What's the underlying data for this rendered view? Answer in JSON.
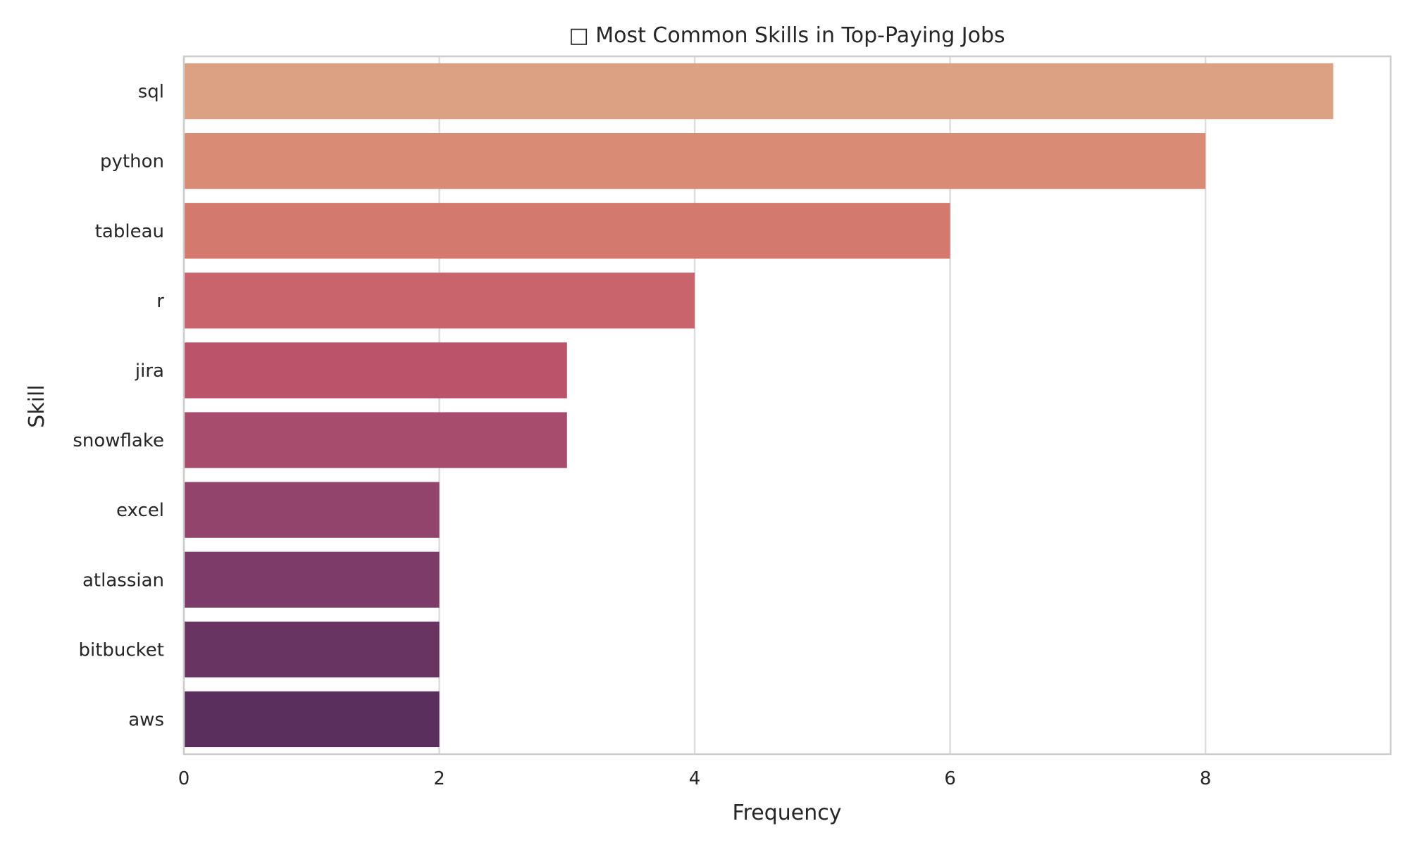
{
  "chart_data": {
    "type": "bar",
    "orientation": "horizontal",
    "title": "□ Most Common Skills in Top-Paying Jobs",
    "xlabel": "Frequency",
    "ylabel": "Skill",
    "categories": [
      "sql",
      "python",
      "tableau",
      "r",
      "jira",
      "snowflake",
      "excel",
      "atlassian",
      "bitbucket",
      "aws"
    ],
    "values": [
      9,
      8,
      6,
      4,
      3,
      3,
      2,
      2,
      2,
      2
    ],
    "xlim": [
      0,
      9.45
    ],
    "xticks": [
      0,
      2,
      4,
      6,
      8
    ],
    "grid": "vertical",
    "legend": "none",
    "colors": [
      "#dca083",
      "#da8b75",
      "#d4796d",
      "#c9646d",
      "#bb536a",
      "#a84c6d",
      "#92446c",
      "#7c3b68",
      "#683462",
      "#5a2f5e"
    ],
    "grid_color": "#dddddd",
    "frame_color": "#cccccc"
  }
}
